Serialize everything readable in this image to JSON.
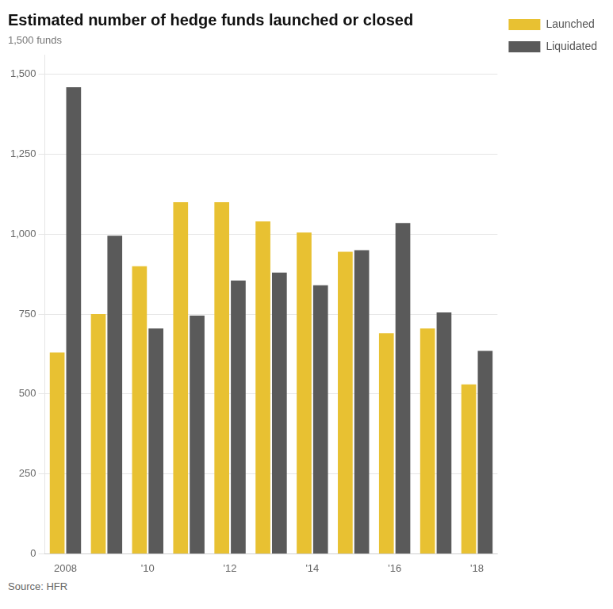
{
  "chart_data": {
    "type": "bar",
    "title": "Estimated number of hedge funds launched or closed",
    "ylabel": "1,500 funds",
    "source": "Source: HFR",
    "categories": [
      "2008",
      null,
      "'10",
      null,
      "'12",
      null,
      "'14",
      null,
      "'16",
      null,
      "'18"
    ],
    "series": [
      {
        "name": "Launched",
        "color": "#E8C132",
        "values": [
          630,
          750,
          900,
          1100,
          1100,
          1040,
          1005,
          945,
          690,
          705,
          530
        ]
      },
      {
        "name": "Liquidated",
        "color": "#5a5a5a",
        "values": [
          1460,
          995,
          705,
          745,
          855,
          880,
          840,
          950,
          1035,
          755,
          635
        ]
      }
    ],
    "ylim": [
      0,
      1560
    ],
    "yticks": [
      0,
      250,
      500,
      750,
      {
        "value": 1000,
        "label": "1,000"
      },
      {
        "value": 1250,
        "label": "1,250"
      },
      {
        "value": 1500,
        "label": "1,500"
      }
    ],
    "grid": true,
    "legend": "right"
  }
}
